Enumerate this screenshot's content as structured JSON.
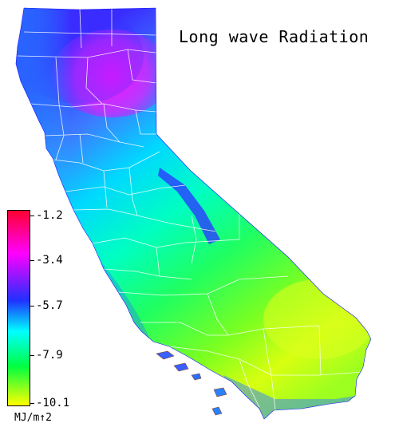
{
  "map": {
    "title": "Long wave Radiation",
    "region": "California"
  },
  "legend": {
    "unit": "MJ/m↑2",
    "ticks": [
      "-1.2",
      "-3.4",
      "-5.7",
      "-7.9",
      "-10.1"
    ],
    "colors": {
      "max": "#ff0040",
      "upper": "#ff00ff",
      "mid_high": "#3030ff",
      "mid": "#00ffff",
      "mid_low": "#00ff40",
      "min": "#ffff00"
    }
  }
}
